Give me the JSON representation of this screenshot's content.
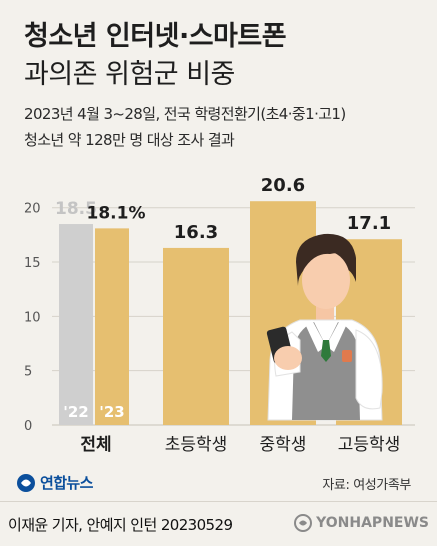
{
  "header": {
    "title": "청소년 인터넷·스마트폰",
    "subtitle": "과의존 위험군 비중",
    "survey_line1": "2023년 4월 3~28일, 전국 학령전환기(초4·중1·고1)",
    "survey_line2": "청소년 약 128만 명 대상 조사 결과"
  },
  "chart_data": {
    "type": "bar",
    "categories": [
      "전체",
      "초등학생",
      "중학생",
      "고등학생"
    ],
    "series": [
      {
        "name": "'22",
        "values": [
          18.5,
          null,
          null,
          null
        ]
      },
      {
        "name": "'23",
        "values": [
          18.1,
          16.3,
          20.6,
          17.1
        ]
      }
    ],
    "value_labels": [
      "18.5",
      "18.1%",
      "16.3",
      "20.6",
      "17.1"
    ],
    "ylim": [
      0,
      22
    ],
    "yticks": [
      0,
      5,
      10,
      15,
      20
    ],
    "ytick_labels": [
      "0",
      "5",
      "10",
      "15",
      "20"
    ],
    "grid": true,
    "colors": {
      "bar_2023": "#e6bf70",
      "bar_2022": "#cfcfcf",
      "grid": "#d6d2ca",
      "background": "#f3f1ec"
    }
  },
  "footer": {
    "logo_text": "연합뉴스",
    "source": "자료: 여성가족부",
    "credit": "이재윤 기자, 안예지 인턴  20230529",
    "watermark": "YONHAPNEWS"
  }
}
